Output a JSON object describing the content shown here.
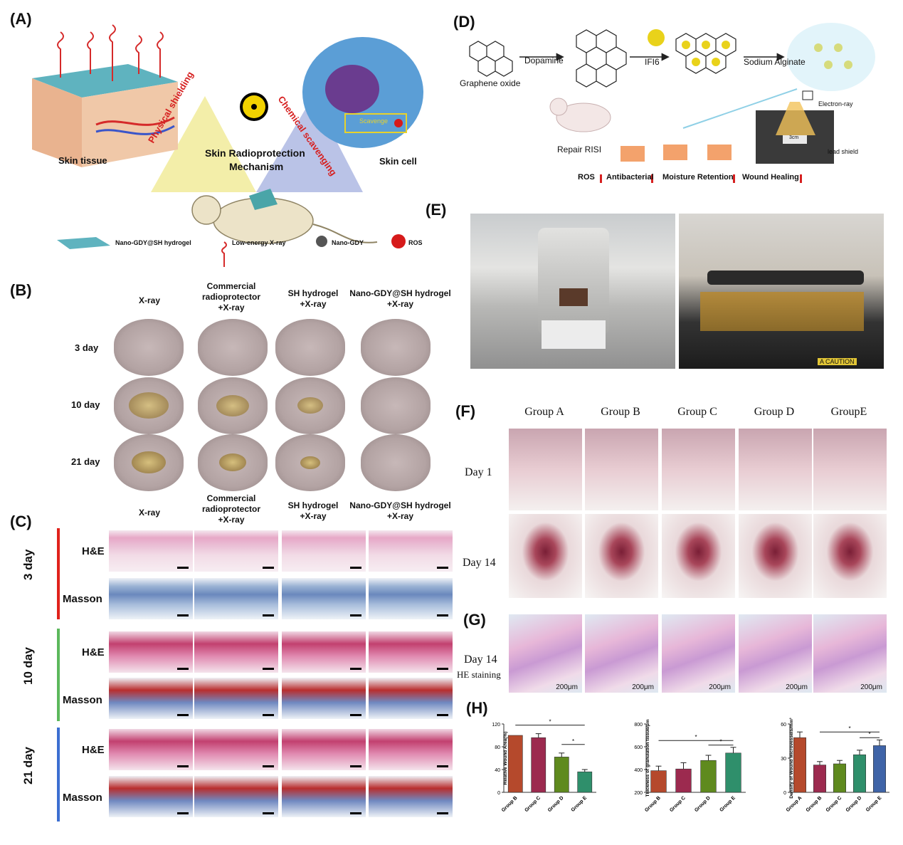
{
  "panels": {
    "a": "(A)",
    "b": "(B)",
    "c": "(C)",
    "d": "(D)",
    "e": "(E)",
    "f": "(F)",
    "g": "(G)",
    "h": "(H)"
  },
  "panel_a": {
    "skin_tissue": "Skin tissue",
    "skin_cell": "Skin cell",
    "physical_shielding": "Physical shielding",
    "chemical_scavenging": "Chemical scavenging",
    "mechanism_line1": "Skin Radioprotection",
    "mechanism_line2": "Mechanism",
    "scavenge": "Scavenge",
    "legend": [
      "Nano-GDY@SH hydrogel",
      "Low-energy X-ray",
      "Nano-GDY",
      "ROS"
    ]
  },
  "panel_b": {
    "columns": [
      [
        "X-ray"
      ],
      [
        "Commercial",
        "radioprotector",
        "+X-ray"
      ],
      [
        "SH hydrogel",
        "+X-ray"
      ],
      [
        "Nano-GDY@SH hydrogel",
        "+X-ray"
      ]
    ],
    "rows": [
      "3 day",
      "10 day",
      "21 day"
    ]
  },
  "panel_c": {
    "columns": [
      [
        "X-ray"
      ],
      [
        "Commercial",
        "radioprotector",
        "+X-ray"
      ],
      [
        "SH hydrogel",
        "+X-ray"
      ],
      [
        "Nano-GDY@SH hydrogel",
        "+X-ray"
      ]
    ],
    "groups": [
      "3 day",
      "10 day",
      "21 day"
    ],
    "stains": [
      "H&E",
      "Masson"
    ],
    "group_colors": [
      "#e0221b",
      "#5cb85c",
      "#3c6fd1"
    ]
  },
  "panel_d": {
    "graphene_oxide": "Graphene oxide",
    "dopamine": "Dopamine",
    "ifi6": "IFI6",
    "sodium_alginate": "Sodium Alginate",
    "electron_ray": "Electron-ray",
    "lead_shield": "lead shield",
    "repair": "Repair RISI",
    "outcomes": [
      "ROS",
      "Antibacterial",
      "Moisture Retention",
      "Wound Healing"
    ],
    "dose_label": "3cm"
  },
  "panel_e": {
    "caution": "A CAUTION"
  },
  "panel_f": {
    "groups": [
      "Group A",
      "Group B",
      "Group C",
      "Group D",
      "GroupE"
    ],
    "rows": [
      "Day 1",
      "Day 14"
    ]
  },
  "panel_g": {
    "row_line1": "Day 14",
    "row_line2": "HE staining",
    "scale": "200μm"
  },
  "chart_data": [
    {
      "type": "bar",
      "ylabel": "Relative Wound Area(%)",
      "categories": [
        "Group B",
        "Group C",
        "Group D",
        "Group E"
      ],
      "values": [
        100,
        96,
        62,
        36
      ],
      "errors": [
        0,
        7,
        7,
        4
      ],
      "ylim": [
        0,
        120
      ],
      "yticks": [
        0,
        40,
        80,
        120
      ],
      "colors": [
        "#b5492c",
        "#9c2a4f",
        "#5f8a1e",
        "#2f8f6b"
      ],
      "significance": [
        {
          "from": 0,
          "to": 3,
          "level": 118,
          "mark": "*"
        },
        {
          "from": 2,
          "to": 3,
          "level": 84,
          "mark": "*"
        }
      ]
    },
    {
      "type": "bar",
      "ylabel": "Thickness of granulation tissue/μm",
      "categories": [
        "Group B",
        "Group C",
        "Group D",
        "Group E"
      ],
      "values": [
        390,
        405,
        480,
        545
      ],
      "errors": [
        40,
        55,
        45,
        50
      ],
      "ylim": [
        200,
        800
      ],
      "yticks": [
        200,
        400,
        600,
        800
      ],
      "colors": [
        "#b5492c",
        "#9c2a4f",
        "#5f8a1e",
        "#2f8f6b"
      ],
      "significance": [
        {
          "from": 0,
          "to": 3,
          "level": 655,
          "mark": "*"
        },
        {
          "from": 2,
          "to": 3,
          "level": 615,
          "mark": "*"
        }
      ]
    },
    {
      "type": "bar",
      "ylabel": "Density of Wound Microvessels/mm²",
      "categories": [
        "Group A",
        "Group B",
        "Group C",
        "Group D",
        "Group E"
      ],
      "values": [
        48,
        24,
        25,
        33,
        41
      ],
      "errors": [
        5,
        3,
        3,
        4,
        5
      ],
      "ylim": [
        0,
        60
      ],
      "yticks": [
        0,
        30,
        60
      ],
      "colors": [
        "#b5492c",
        "#9c2a4f",
        "#5f8a1e",
        "#2f8f6b",
        "#3f64a8"
      ],
      "significance": [
        {
          "from": 1,
          "to": 4,
          "level": 53,
          "mark": "*"
        },
        {
          "from": 3,
          "to": 4,
          "level": 48,
          "mark": "*"
        }
      ]
    }
  ]
}
